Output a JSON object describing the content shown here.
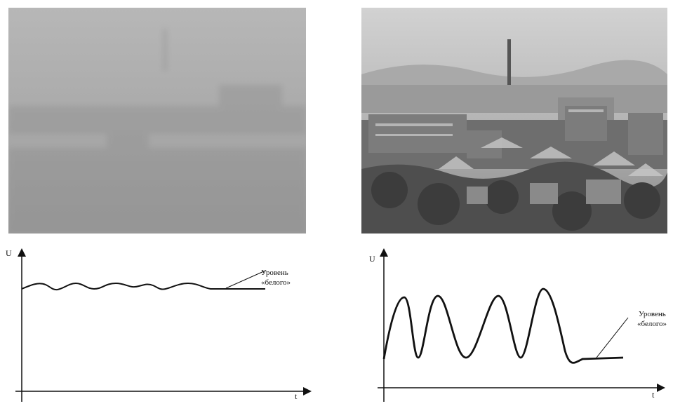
{
  "left_panel": {
    "photo": "foggy-city-photo",
    "graph": {
      "y_axis_label": "U",
      "x_axis_label": "t",
      "annotation_line1": "Уровень",
      "annotation_line2": "«белого»"
    }
  },
  "right_panel": {
    "photo": "clear-city-photo",
    "graph": {
      "y_axis_label": "U",
      "x_axis_label": "t",
      "annotation_line1": "Уровень",
      "annotation_line2": "«белого»"
    }
  },
  "colors": {
    "foggy_photo": "#a8a8a8",
    "clear_photo_sky": "#c9c9c9",
    "clear_photo_buildings": "#5a5a5a",
    "line": "#111111"
  }
}
